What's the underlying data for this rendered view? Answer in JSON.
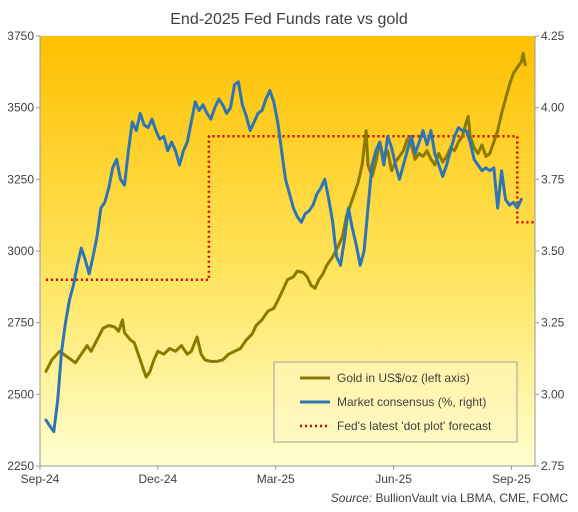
{
  "chart_data": {
    "type": "line",
    "title": "End-2025 Fed Funds rate vs gold",
    "source_label": "Source:",
    "source_text": "BullionVault via LBMA, CME, FOMC",
    "x_ticks": [
      "Sep-24",
      "Dec-24",
      "Mar-25",
      "Jun-25",
      "Sep-25"
    ],
    "y_left_ticks": [
      "2250",
      "2500",
      "2750",
      "3000",
      "3250",
      "3500",
      "3750"
    ],
    "y_right_ticks": [
      "2.75",
      "3.00",
      "3.25",
      "3.50",
      "3.75",
      "4.00",
      "4.25"
    ],
    "y_left_range": [
      2250,
      3750
    ],
    "y_right_range": [
      2.75,
      4.25
    ],
    "x_range": [
      0,
      12.6
    ],
    "x_unit_note": "months from Sep-24",
    "grid": false,
    "legend_position": "bottom-right",
    "colors": {
      "gold": "#8a7a00",
      "market": "#2e75b6",
      "dot_plot": "#d40000",
      "bg_top": "#ffc000",
      "bg_bottom": "#ffffd0",
      "axis": "#9a9a9a"
    },
    "series": [
      {
        "name": "Gold in US$/oz (left axis)",
        "axis": "left",
        "style": "solid",
        "points": [
          [
            0.15,
            2580
          ],
          [
            0.3,
            2620
          ],
          [
            0.5,
            2650
          ],
          [
            0.7,
            2630
          ],
          [
            0.9,
            2610
          ],
          [
            1.05,
            2640
          ],
          [
            1.2,
            2670
          ],
          [
            1.3,
            2650
          ],
          [
            1.45,
            2690
          ],
          [
            1.6,
            2730
          ],
          [
            1.75,
            2740
          ],
          [
            1.9,
            2735
          ],
          [
            2.0,
            2720
          ],
          [
            2.1,
            2760
          ],
          [
            2.15,
            2715
          ],
          [
            2.3,
            2690
          ],
          [
            2.4,
            2680
          ],
          [
            2.55,
            2620
          ],
          [
            2.7,
            2560
          ],
          [
            2.8,
            2580
          ],
          [
            2.9,
            2620
          ],
          [
            3.0,
            2650
          ],
          [
            3.15,
            2640
          ],
          [
            3.3,
            2660
          ],
          [
            3.45,
            2650
          ],
          [
            3.6,
            2670
          ],
          [
            3.75,
            2640
          ],
          [
            3.85,
            2650
          ],
          [
            4.0,
            2700
          ],
          [
            4.1,
            2640
          ],
          [
            4.2,
            2620
          ],
          [
            4.35,
            2615
          ],
          [
            4.5,
            2615
          ],
          [
            4.65,
            2620
          ],
          [
            4.8,
            2640
          ],
          [
            4.95,
            2650
          ],
          [
            5.1,
            2660
          ],
          [
            5.25,
            2690
          ],
          [
            5.4,
            2710
          ],
          [
            5.5,
            2740
          ],
          [
            5.65,
            2760
          ],
          [
            5.8,
            2790
          ],
          [
            5.95,
            2800
          ],
          [
            6.1,
            2840
          ],
          [
            6.2,
            2870
          ],
          [
            6.3,
            2900
          ],
          [
            6.45,
            2910
          ],
          [
            6.55,
            2930
          ],
          [
            6.7,
            2925
          ],
          [
            6.8,
            2910
          ],
          [
            6.9,
            2880
          ],
          [
            7.0,
            2870
          ],
          [
            7.1,
            2900
          ],
          [
            7.2,
            2920
          ],
          [
            7.3,
            2950
          ],
          [
            7.45,
            2980
          ],
          [
            7.6,
            3020
          ],
          [
            7.7,
            3050
          ],
          [
            7.8,
            3120
          ],
          [
            7.9,
            3160
          ],
          [
            8.0,
            3200
          ],
          [
            8.1,
            3240
          ],
          [
            8.2,
            3300
          ],
          [
            8.3,
            3420
          ],
          [
            8.35,
            3300
          ],
          [
            8.45,
            3260
          ],
          [
            8.55,
            3310
          ],
          [
            8.65,
            3380
          ],
          [
            8.75,
            3320
          ],
          [
            8.85,
            3350
          ],
          [
            8.95,
            3280
          ],
          [
            9.05,
            3310
          ],
          [
            9.15,
            3330
          ],
          [
            9.25,
            3350
          ],
          [
            9.35,
            3390
          ],
          [
            9.45,
            3370
          ],
          [
            9.55,
            3320
          ],
          [
            9.65,
            3340
          ],
          [
            9.75,
            3330
          ],
          [
            9.85,
            3350
          ],
          [
            9.95,
            3320
          ],
          [
            10.05,
            3300
          ],
          [
            10.15,
            3340
          ],
          [
            10.25,
            3310
          ],
          [
            10.35,
            3330
          ],
          [
            10.45,
            3360
          ],
          [
            10.55,
            3350
          ],
          [
            10.65,
            3380
          ],
          [
            10.75,
            3400
          ],
          [
            10.85,
            3450
          ],
          [
            10.9,
            3470
          ],
          [
            10.95,
            3400
          ],
          [
            11.05,
            3360
          ],
          [
            11.15,
            3340
          ],
          [
            11.25,
            3370
          ],
          [
            11.35,
            3330
          ],
          [
            11.45,
            3340
          ],
          [
            11.55,
            3380
          ],
          [
            11.65,
            3420
          ],
          [
            11.75,
            3480
          ],
          [
            11.85,
            3530
          ],
          [
            11.95,
            3580
          ],
          [
            12.05,
            3620
          ],
          [
            12.15,
            3640
          ],
          [
            12.25,
            3660
          ],
          [
            12.3,
            3690
          ],
          [
            12.35,
            3650
          ]
        ]
      },
      {
        "name": "Market consensus (%, right)",
        "axis": "right",
        "style": "solid",
        "points": [
          [
            0.15,
            2.91
          ],
          [
            0.25,
            2.89
          ],
          [
            0.35,
            2.87
          ],
          [
            0.45,
            2.98
          ],
          [
            0.55,
            3.15
          ],
          [
            0.65,
            3.25
          ],
          [
            0.75,
            3.33
          ],
          [
            0.85,
            3.38
          ],
          [
            0.95,
            3.45
          ],
          [
            1.05,
            3.51
          ],
          [
            1.15,
            3.47
          ],
          [
            1.25,
            3.42
          ],
          [
            1.35,
            3.48
          ],
          [
            1.45,
            3.55
          ],
          [
            1.55,
            3.65
          ],
          [
            1.65,
            3.67
          ],
          [
            1.75,
            3.72
          ],
          [
            1.85,
            3.79
          ],
          [
            1.95,
            3.82
          ],
          [
            2.05,
            3.75
          ],
          [
            2.15,
            3.73
          ],
          [
            2.25,
            3.85
          ],
          [
            2.35,
            3.95
          ],
          [
            2.45,
            3.92
          ],
          [
            2.55,
            3.98
          ],
          [
            2.65,
            3.94
          ],
          [
            2.75,
            3.93
          ],
          [
            2.85,
            3.96
          ],
          [
            2.95,
            3.92
          ],
          [
            3.05,
            3.89
          ],
          [
            3.15,
            3.9
          ],
          [
            3.25,
            3.85
          ],
          [
            3.35,
            3.88
          ],
          [
            3.45,
            3.85
          ],
          [
            3.55,
            3.8
          ],
          [
            3.65,
            3.85
          ],
          [
            3.75,
            3.88
          ],
          [
            3.85,
            3.95
          ],
          [
            3.95,
            4.02
          ],
          [
            4.05,
            3.99
          ],
          [
            4.15,
            4.01
          ],
          [
            4.25,
            3.98
          ],
          [
            4.35,
            3.96
          ],
          [
            4.45,
            4.0
          ],
          [
            4.55,
            4.03
          ],
          [
            4.65,
            4.01
          ],
          [
            4.75,
            3.98
          ],
          [
            4.85,
            4.0
          ],
          [
            4.95,
            4.08
          ],
          [
            5.05,
            4.09
          ],
          [
            5.15,
            4.01
          ],
          [
            5.25,
            3.97
          ],
          [
            5.35,
            3.92
          ],
          [
            5.45,
            3.95
          ],
          [
            5.55,
            3.98
          ],
          [
            5.65,
            3.99
          ],
          [
            5.75,
            4.03
          ],
          [
            5.85,
            4.06
          ],
          [
            5.95,
            4.02
          ],
          [
            6.05,
            3.95
          ],
          [
            6.15,
            3.85
          ],
          [
            6.25,
            3.75
          ],
          [
            6.35,
            3.7
          ],
          [
            6.45,
            3.65
          ],
          [
            6.55,
            3.62
          ],
          [
            6.65,
            3.6
          ],
          [
            6.75,
            3.63
          ],
          [
            6.85,
            3.64
          ],
          [
            6.95,
            3.66
          ],
          [
            7.05,
            3.7
          ],
          [
            7.15,
            3.72
          ],
          [
            7.25,
            3.75
          ],
          [
            7.35,
            3.68
          ],
          [
            7.45,
            3.6
          ],
          [
            7.55,
            3.48
          ],
          [
            7.65,
            3.45
          ],
          [
            7.75,
            3.54
          ],
          [
            7.85,
            3.65
          ],
          [
            7.95,
            3.58
          ],
          [
            8.05,
            3.52
          ],
          [
            8.15,
            3.45
          ],
          [
            8.25,
            3.5
          ],
          [
            8.35,
            3.65
          ],
          [
            8.45,
            3.8
          ],
          [
            8.55,
            3.85
          ],
          [
            8.65,
            3.88
          ],
          [
            8.75,
            3.8
          ],
          [
            8.85,
            3.9
          ],
          [
            8.95,
            3.86
          ],
          [
            9.05,
            3.8
          ],
          [
            9.15,
            3.75
          ],
          [
            9.25,
            3.8
          ],
          [
            9.35,
            3.85
          ],
          [
            9.45,
            3.9
          ],
          [
            9.55,
            3.84
          ],
          [
            9.65,
            3.88
          ],
          [
            9.75,
            3.92
          ],
          [
            9.85,
            3.87
          ],
          [
            9.95,
            3.92
          ],
          [
            10.05,
            3.84
          ],
          [
            10.15,
            3.8
          ],
          [
            10.25,
            3.76
          ],
          [
            10.35,
            3.8
          ],
          [
            10.45,
            3.85
          ],
          [
            10.55,
            3.9
          ],
          [
            10.65,
            3.93
          ],
          [
            10.75,
            3.92
          ],
          [
            10.85,
            3.92
          ],
          [
            10.95,
            3.88
          ],
          [
            11.05,
            3.82
          ],
          [
            11.15,
            3.8
          ],
          [
            11.25,
            3.78
          ],
          [
            11.35,
            3.79
          ],
          [
            11.45,
            3.78
          ],
          [
            11.55,
            3.79
          ],
          [
            11.65,
            3.65
          ],
          [
            11.75,
            3.78
          ],
          [
            11.85,
            3.68
          ],
          [
            11.95,
            3.66
          ],
          [
            12.05,
            3.67
          ],
          [
            12.15,
            3.65
          ],
          [
            12.25,
            3.68
          ]
        ]
      },
      {
        "name": "Fed's latest 'dot plot' forecast",
        "axis": "right",
        "style": "dotted",
        "points": [
          [
            0.15,
            3.4
          ],
          [
            4.3,
            3.4
          ],
          [
            4.3,
            3.9
          ],
          [
            12.15,
            3.9
          ],
          [
            12.15,
            3.6
          ],
          [
            12.6,
            3.6
          ]
        ]
      }
    ]
  }
}
